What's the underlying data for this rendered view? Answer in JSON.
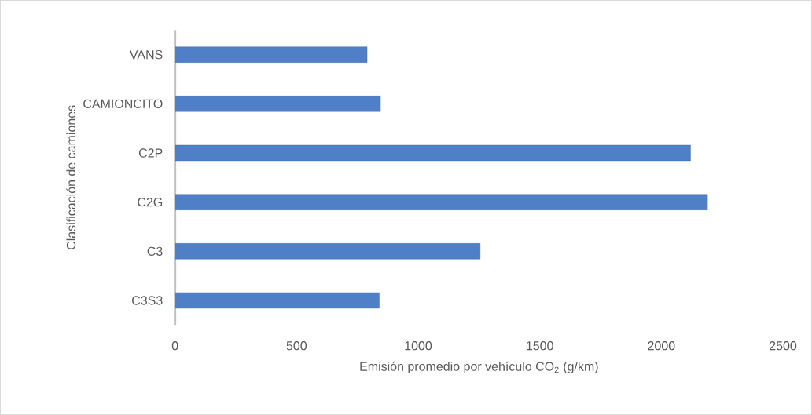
{
  "chart_data": {
    "type": "bar",
    "orientation": "horizontal",
    "categories": [
      "VANS",
      "CAMIONCITO",
      "C2P",
      "C2G",
      "C3",
      "C3S3"
    ],
    "values": [
      790,
      845,
      2120,
      2190,
      1255,
      840
    ],
    "color": "#4f7fc6",
    "xlim": [
      0,
      2500
    ],
    "xticks": [
      0,
      500,
      1000,
      1500,
      2000,
      2500
    ],
    "xlabel": "Emisión promedio por vehículo CO$_{2}$ (g/km)",
    "ylabel": "Clasificación de camiones",
    "grid": false
  }
}
